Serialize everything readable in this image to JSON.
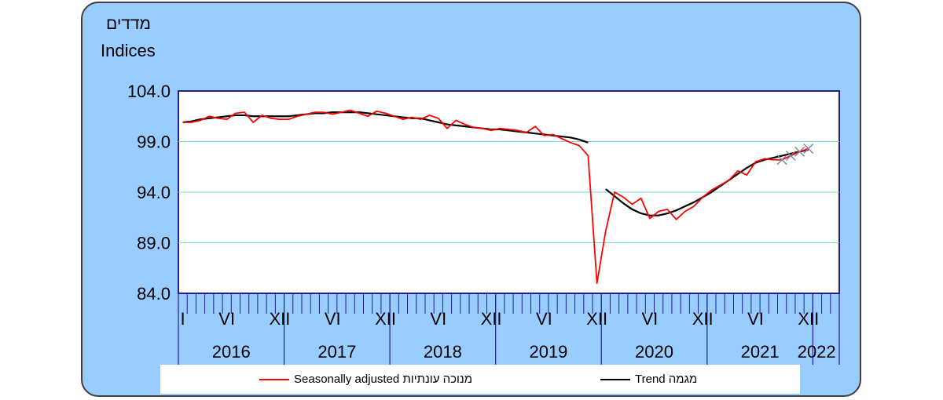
{
  "header": {
    "label_hebrew": "מדדים",
    "label_english": "Indices"
  },
  "legend": {
    "seasonal_label": "Seasonally adjusted  מנוכה עונתיות",
    "trend_label": "Trend  מגמה"
  },
  "colors": {
    "seasonal": "#ff0000",
    "trend": "#000000",
    "forecast_marker": "#8080a0",
    "panel": "#99ccff",
    "grid": "#7fd4d4"
  },
  "chart_data": {
    "type": "line",
    "ylim": [
      84.0,
      104.0
    ],
    "yticks": [
      "104.0",
      "99.0",
      "94.0",
      "89.0",
      "84.0"
    ],
    "ytick_values": [
      104.0,
      99.0,
      94.0,
      89.0,
      84.0
    ],
    "grid": true,
    "month_labels": [
      "I",
      "VI",
      "XII",
      "VI",
      "XII",
      "VI",
      "XII",
      "VI",
      "XII",
      "VI",
      "XII",
      "VI",
      "XII"
    ],
    "month_label_indices": [
      0,
      5,
      11,
      17,
      23,
      29,
      35,
      41,
      47,
      53,
      59,
      65,
      71
    ],
    "years": [
      "2016",
      "2017",
      "2018",
      "2019",
      "2020",
      "2021",
      "2022"
    ],
    "series": [
      {
        "name": "Seasonally adjusted",
        "start": "2016-01",
        "values": [
          100.9,
          100.9,
          101.1,
          101.5,
          101.3,
          101.2,
          101.8,
          101.9,
          100.9,
          101.6,
          101.3,
          101.2,
          101.2,
          101.5,
          101.7,
          101.9,
          101.9,
          101.7,
          101.9,
          102.1,
          101.8,
          101.5,
          102.0,
          101.8,
          101.5,
          101.2,
          101.4,
          101.2,
          101.6,
          101.3,
          100.3,
          101.1,
          100.7,
          100.4,
          100.3,
          100.1,
          100.3,
          100.2,
          100.1,
          99.9,
          100.5,
          99.6,
          99.7,
          99.3,
          98.9,
          98.6,
          97.6,
          85.0,
          90.2,
          94.0,
          93.5,
          92.8,
          93.4,
          91.4,
          92.1,
          92.3,
          91.3,
          92.1,
          92.6,
          93.5,
          94.2,
          94.7,
          95.2,
          96.1,
          95.7,
          97.0,
          97.3,
          97.2,
          97.2,
          97.6,
          98.0,
          98.3
        ],
        "color": "#ff0000"
      },
      {
        "name": "Trend",
        "start": "2016-01",
        "values": [
          100.9,
          101.0,
          101.2,
          101.3,
          101.4,
          101.5,
          101.6,
          101.6,
          101.5,
          101.5,
          101.5,
          101.5,
          101.5,
          101.6,
          101.7,
          101.8,
          101.8,
          101.9,
          101.9,
          101.9,
          101.9,
          101.8,
          101.7,
          101.6,
          101.5,
          101.4,
          101.3,
          101.3,
          101.1,
          100.9,
          100.7,
          100.6,
          100.5,
          100.4,
          100.3,
          100.2,
          100.2,
          100.1,
          100.0,
          99.9,
          99.8,
          99.7,
          99.6,
          99.5,
          99.4,
          99.2,
          98.9,
          null,
          94.3,
          93.6,
          92.9,
          92.3,
          91.9,
          91.7,
          91.7,
          91.9,
          92.2,
          92.6,
          93.0,
          93.5,
          94.0,
          94.6,
          95.2,
          95.8,
          96.4,
          96.9,
          97.2,
          97.4,
          97.6,
          97.8,
          98.0,
          98.2
        ],
        "color": "#000000"
      }
    ],
    "forecast_start_index": 68
  }
}
